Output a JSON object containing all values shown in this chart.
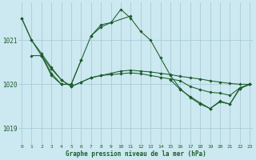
{
  "title": "Graphe pression niveau de la mer (hPa)",
  "yticks": [
    1019,
    1020,
    1021
  ],
  "ylim": [
    1018.65,
    1021.85
  ],
  "xlim": [
    -0.3,
    23.3
  ],
  "bg_color": "#cce8f0",
  "grid_color": "#aaccd8",
  "line_color": "#1a5c2a",
  "label_color": "#1a5c2a",
  "series": [
    {
      "x": [
        0,
        1,
        2,
        3,
        4,
        5,
        6,
        7,
        8,
        9,
        10,
        11,
        12,
        13,
        14,
        15,
        16,
        17,
        18,
        19,
        20,
        21,
        22,
        23
      ],
      "y": [
        1021.5,
        1021.0,
        1020.65,
        1020.35,
        1020.1,
        1019.95,
        1020.05,
        1020.15,
        1020.2,
        1020.25,
        1020.3,
        1020.32,
        1020.3,
        1020.28,
        1020.25,
        1020.22,
        1020.18,
        1020.15,
        1020.12,
        1020.08,
        1020.05,
        1020.02,
        1020.0,
        1020.0
      ]
    },
    {
      "x": [
        0,
        1,
        2,
        3,
        4,
        5,
        6,
        7,
        8,
        9,
        10,
        11,
        12,
        13,
        14,
        15,
        16,
        17,
        18,
        19,
        20,
        21,
        22,
        23
      ],
      "y": [
        1021.5,
        1021.0,
        1020.7,
        1020.38,
        1020.1,
        1019.95,
        1020.05,
        1020.15,
        1020.2,
        1020.22,
        1020.24,
        1020.26,
        1020.24,
        1020.2,
        1020.16,
        1020.12,
        1020.08,
        1019.95,
        1019.88,
        1019.82,
        1019.8,
        1019.75,
        1019.92,
        1020.0
      ]
    },
    {
      "x": [
        1,
        2,
        3,
        4,
        5,
        6,
        7,
        8,
        9,
        10,
        11,
        12,
        13,
        14,
        15,
        16,
        17,
        18,
        19,
        20,
        21,
        22,
        23
      ],
      "y": [
        1020.65,
        1020.65,
        1020.2,
        1020.0,
        1020.0,
        1020.55,
        1021.1,
        1021.35,
        1021.4,
        1021.7,
        1021.5,
        1021.2,
        1021.0,
        1020.6,
        1020.2,
        1019.9,
        1019.7,
        1019.55,
        1019.45,
        1019.6,
        1019.55,
        1019.9,
        1020.0
      ]
    },
    {
      "x": [
        2,
        3,
        4,
        5,
        6
      ],
      "y": [
        1020.65,
        1020.25,
        1020.0,
        1020.0,
        1020.55
      ]
    },
    {
      "x": [
        7,
        8,
        9,
        11
      ],
      "y": [
        1021.1,
        1021.3,
        1021.4,
        1021.55
      ]
    },
    {
      "x": [
        15,
        16,
        17,
        18,
        19,
        20,
        21,
        22,
        23
      ],
      "y": [
        1020.1,
        1019.88,
        1019.72,
        1019.58,
        1019.45,
        1019.62,
        1019.55,
        1019.92,
        1020.0
      ]
    }
  ]
}
